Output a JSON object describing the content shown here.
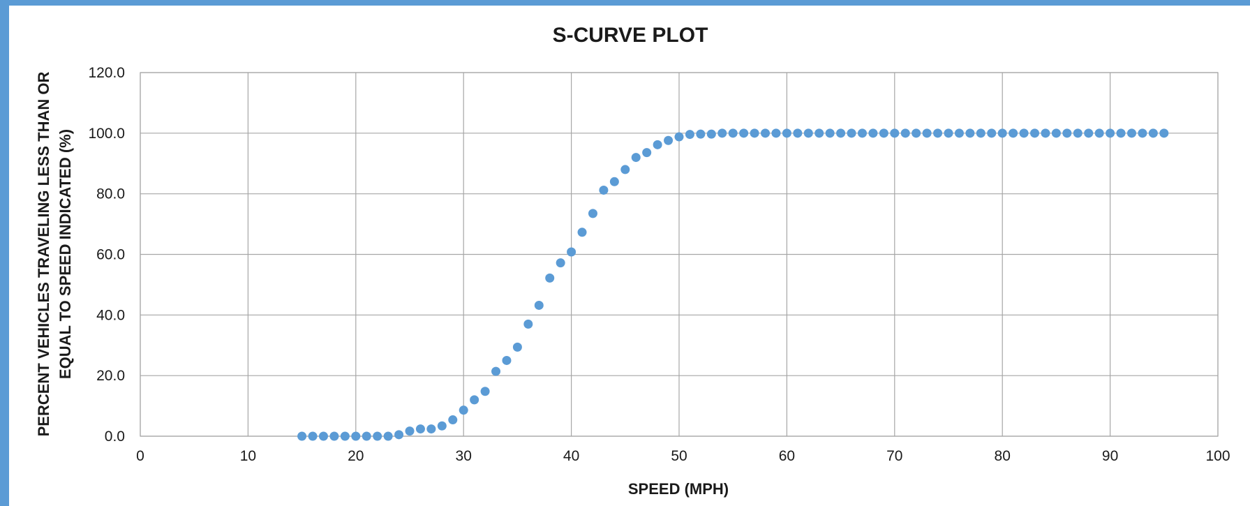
{
  "chart_data": {
    "type": "scatter",
    "title": "S-CURVE PLOT",
    "xlabel": "SPEED (MPH)",
    "ylabel_lines": [
      "PERCENT VEHICLES TRAVELING LESS THAN OR",
      "EQUAL TO SPEED INDICATED (%)"
    ],
    "xlim": [
      0,
      100
    ],
    "ylim": [
      0,
      120
    ],
    "x_ticks": [
      "0",
      "10",
      "20",
      "30",
      "40",
      "50",
      "60",
      "70",
      "80",
      "90",
      "100"
    ],
    "y_ticks": [
      "0.0",
      "20.0",
      "40.0",
      "60.0",
      "80.0",
      "100.0",
      "120.0"
    ],
    "grid": true,
    "legend": "none",
    "marker_color": "#5b9bd5",
    "series": [
      {
        "x": [
          15,
          16,
          17,
          18,
          19,
          20,
          21,
          22,
          23,
          24,
          25,
          26,
          27,
          28,
          29,
          30,
          31,
          32,
          33,
          34,
          35,
          36,
          37,
          38,
          39,
          40,
          41,
          42,
          43,
          44,
          45,
          46,
          47,
          48,
          49,
          50,
          51,
          52,
          53,
          54,
          55,
          56,
          57,
          58,
          59,
          60,
          61,
          62,
          63,
          64,
          65,
          66,
          67,
          68,
          69,
          70,
          71,
          72,
          73,
          74,
          75,
          76,
          77,
          78,
          79,
          80,
          81,
          82,
          83,
          84,
          85,
          86,
          87,
          88,
          89,
          90,
          91,
          92,
          93,
          94,
          95
        ],
        "y": [
          0,
          0,
          0,
          0,
          0,
          0,
          0,
          0,
          0,
          0.5,
          1.7,
          2.4,
          2.4,
          3.4,
          5.4,
          8.6,
          12,
          14.8,
          21.4,
          25,
          29.4,
          37,
          43.2,
          52.2,
          57.2,
          60.8,
          67.3,
          73.5,
          81.2,
          84,
          88,
          92,
          93.6,
          96.2,
          97.6,
          98.8,
          99.6,
          99.7,
          99.7,
          100,
          100,
          100,
          100,
          100,
          100,
          100,
          100,
          100,
          100,
          100,
          100,
          100,
          100,
          100,
          100,
          100,
          100,
          100,
          100,
          100,
          100,
          100,
          100,
          100,
          100,
          100,
          100,
          100,
          100,
          100,
          100,
          100,
          100,
          100,
          100,
          100,
          100,
          100,
          100,
          100,
          100
        ]
      }
    ]
  }
}
